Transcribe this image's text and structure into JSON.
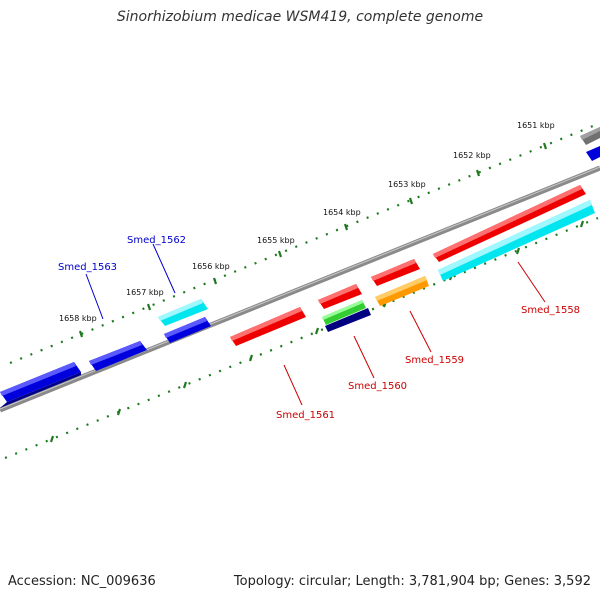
{
  "title": "Sinorhizobium medicae WSM419, complete genome",
  "footer": {
    "accession": "Accession: NC_009636",
    "summary": "Topology: circular; Length: 3,781,904 bp; Genes: 3,592"
  },
  "ruler": {
    "unit": "kbp",
    "ticks": [
      "1651 kbp",
      "1652 kbp",
      "1653 kbp",
      "1654 kbp",
      "1655 kbp",
      "1656 kbp",
      "1657 kbp",
      "1658 kbp"
    ]
  },
  "gene_labels": [
    {
      "text": "Smed_1558",
      "color": "#cc0000"
    },
    {
      "text": "Smed_1559",
      "color": "#cc0000"
    },
    {
      "text": "Smed_1560",
      "color": "#cc0000"
    },
    {
      "text": "Smed_1561",
      "color": "#cc0000"
    },
    {
      "text": "Smed_1562",
      "color": "#0000cc"
    },
    {
      "text": "Smed_1563",
      "color": "#0000cc"
    }
  ],
  "colors": {
    "backbone": "#8a8a8a",
    "dots": "#1f7a1f",
    "forward_gene": "#0000dd",
    "reverse_gene": "#ee0000",
    "feature_cyan": "#00e5ee",
    "feature_orange": "#ff9900",
    "feature_green": "#33cc33",
    "feature_navy": "#000080",
    "feature_gray": "#707070"
  }
}
